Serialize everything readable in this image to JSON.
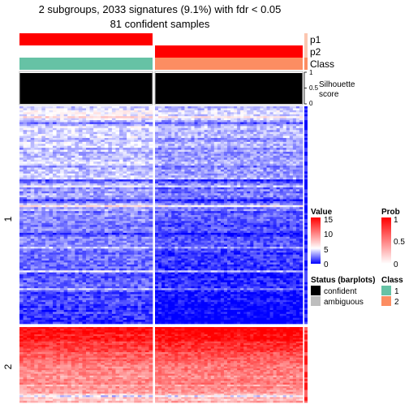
{
  "chart_data": {
    "type": "heatmap",
    "title": "2 subgroups, 2033 signatures (9.1%) with fdr < 0.05",
    "subtitle": "81 confident samples",
    "column_groups": [
      {
        "name": "1",
        "p1": 1,
        "p2": 0,
        "class": "1",
        "silhouette": 1.0
      },
      {
        "name": "2",
        "p1": 0,
        "p2": 1,
        "class": "2",
        "silhouette": 1.0
      }
    ],
    "annotation_tracks": [
      "p1",
      "p2",
      "Class"
    ],
    "silhouette_track": {
      "label_line1": "Silhouette",
      "label_line2": "score",
      "ticks": [
        "0",
        "0.5",
        "1"
      ],
      "range": [
        0,
        1
      ]
    },
    "row_groups": [
      {
        "label": "1",
        "pattern": "low"
      },
      {
        "label": "2",
        "pattern": "high"
      }
    ],
    "legends": {
      "value": {
        "title": "Value",
        "ticks": [
          "15",
          "10",
          "5",
          "0"
        ],
        "range": [
          0,
          15
        ],
        "colors": [
          "#0000ff",
          "#ffffff",
          "#ff0000"
        ]
      },
      "prob": {
        "title": "Prob",
        "ticks": [
          "1",
          "0.5",
          "0"
        ],
        "range": [
          0,
          1
        ],
        "colors": [
          "#ffffff",
          "#ff0000"
        ]
      },
      "status": {
        "title": "Status (barplots)",
        "items": [
          {
            "label": "confident",
            "color": "#000000"
          },
          {
            "label": "ambiguous",
            "color": "#bebebe"
          }
        ]
      },
      "class": {
        "title": "Class",
        "items": [
          {
            "label": "1",
            "color": "#66c2a5"
          },
          {
            "label": "2",
            "color": "#fc8d62"
          }
        ]
      }
    },
    "colors": {
      "p_high": "#ff0000",
      "p_low": "#ffffff",
      "class1": "#66c2a5",
      "class2": "#fc8d62",
      "low": "#0000ff",
      "mid": "#ffffff",
      "high": "#ff0000"
    }
  }
}
